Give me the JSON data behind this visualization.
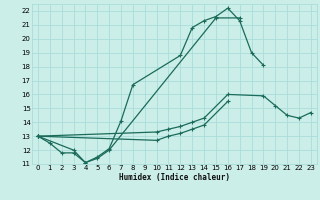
{
  "xlabel": "Humidex (Indice chaleur)",
  "bg_color": "#cceee8",
  "grid_color": "#aaddda",
  "line_color": "#1a6b5a",
  "xlim": [
    -0.5,
    23.5
  ],
  "ylim": [
    11,
    22.5
  ],
  "xticks": [
    0,
    1,
    2,
    3,
    4,
    5,
    6,
    7,
    8,
    9,
    10,
    11,
    12,
    13,
    14,
    15,
    16,
    17,
    18,
    19,
    20,
    21,
    22,
    23
  ],
  "yticks": [
    11,
    12,
    13,
    14,
    15,
    16,
    17,
    18,
    19,
    20,
    21,
    22
  ],
  "series": [
    {
      "x": [
        0,
        1,
        2,
        3,
        4,
        5,
        6,
        7,
        8,
        12,
        13,
        14,
        15,
        16,
        17,
        18,
        19
      ],
      "y": [
        13.0,
        12.5,
        11.8,
        11.8,
        11.1,
        11.5,
        12.1,
        14.1,
        16.7,
        18.8,
        20.8,
        21.3,
        21.6,
        22.2,
        21.3,
        19.0,
        18.1
      ]
    },
    {
      "x": [
        0,
        3,
        4,
        5,
        6,
        15,
        17
      ],
      "y": [
        13.0,
        12.0,
        11.1,
        11.4,
        12.0,
        21.5,
        21.5
      ]
    },
    {
      "x": [
        0,
        10,
        11,
        12,
        13,
        14,
        16,
        19,
        20,
        21,
        22,
        23
      ],
      "y": [
        13.0,
        13.3,
        13.5,
        13.7,
        14.0,
        14.3,
        16.0,
        15.9,
        15.2,
        14.5,
        14.3,
        14.7
      ]
    },
    {
      "x": [
        0,
        10,
        11,
        12,
        13,
        14,
        16
      ],
      "y": [
        13.0,
        12.7,
        13.0,
        13.2,
        13.5,
        13.8,
        15.5
      ]
    }
  ]
}
